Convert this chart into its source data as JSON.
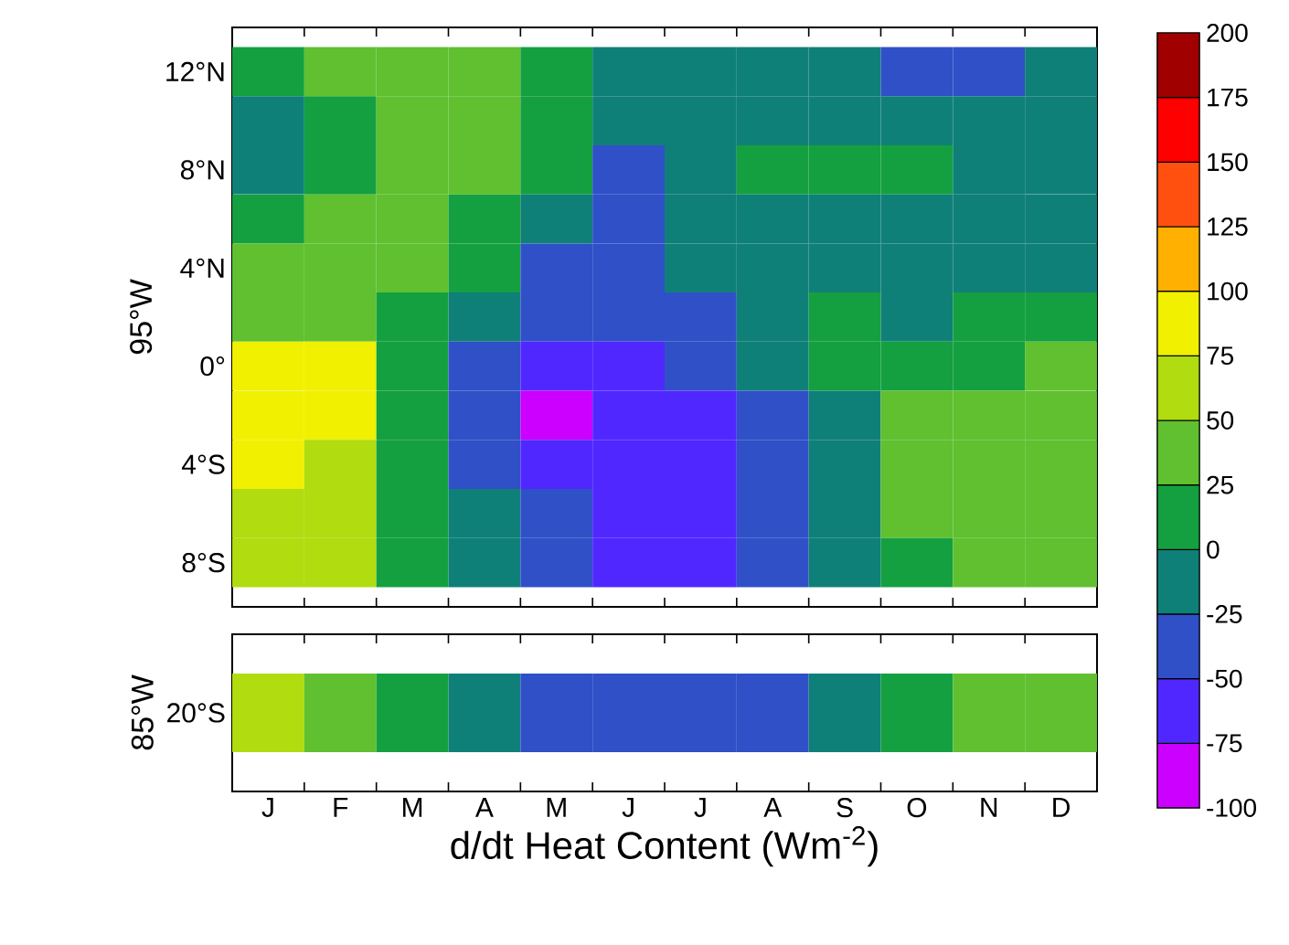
{
  "chart_data": [
    {
      "type": "heatmap",
      "ylabel": "95°W",
      "categories": [
        null,
        null,
        null,
        null,
        null,
        null,
        null,
        null,
        null,
        null,
        null,
        null
      ],
      "y_categories": [
        "12°N",
        null,
        "8°N",
        null,
        "4°N",
        null,
        "0°",
        null,
        "4°S",
        null,
        "8°S"
      ],
      "cells": [
        [
          12.5,
          37.5,
          37.5,
          37.5,
          12.5,
          -12.5,
          -12.5,
          -12.5,
          -12.5,
          -37.5,
          -37.5,
          -12.5
        ],
        [
          -12.5,
          12.5,
          37.5,
          37.5,
          12.5,
          -12.5,
          -12.5,
          -12.5,
          -12.5,
          -12.5,
          -12.5,
          -12.5
        ],
        [
          -12.5,
          12.5,
          37.5,
          37.5,
          12.5,
          -37.5,
          -12.5,
          12.5,
          12.5,
          12.5,
          -12.5,
          -12.5
        ],
        [
          12.5,
          37.5,
          37.5,
          12.5,
          -12.5,
          -37.5,
          -12.5,
          -12.5,
          -12.5,
          -12.5,
          -12.5,
          -12.5
        ],
        [
          37.5,
          37.5,
          37.5,
          12.5,
          -37.5,
          -37.5,
          -12.5,
          -12.5,
          -12.5,
          -12.5,
          -12.5,
          -12.5
        ],
        [
          37.5,
          37.5,
          12.5,
          -12.5,
          -37.5,
          -37.5,
          -37.5,
          -12.5,
          12.5,
          -12.5,
          12.5,
          12.5
        ],
        [
          87.5,
          87.5,
          12.5,
          -37.5,
          -62.5,
          -62.5,
          -37.5,
          -12.5,
          12.5,
          12.5,
          12.5,
          37.5
        ],
        [
          87.5,
          87.5,
          12.5,
          -37.5,
          -87.5,
          -62.5,
          -62.5,
          -37.5,
          -12.5,
          37.5,
          37.5,
          37.5
        ],
        [
          87.5,
          62.5,
          12.5,
          -37.5,
          -62.5,
          -62.5,
          -62.5,
          -37.5,
          -12.5,
          37.5,
          37.5,
          37.5
        ],
        [
          62.5,
          62.5,
          12.5,
          -12.5,
          -37.5,
          -62.5,
          -62.5,
          -37.5,
          -12.5,
          37.5,
          37.5,
          37.5
        ],
        [
          62.5,
          62.5,
          12.5,
          -12.5,
          -37.5,
          -62.5,
          -62.5,
          -37.5,
          -12.5,
          12.5,
          37.5,
          37.5
        ]
      ],
      "clim": [
        -100,
        200
      ],
      "cticks": [
        -100,
        -50,
        0,
        50,
        100,
        150,
        200
      ]
    },
    {
      "type": "heatmap",
      "ylabel": "85°W",
      "xlabel": "d/dt Heat Content (Wm$^{-2}$)",
      "categories": [
        "J",
        "F",
        "M",
        "A",
        "M",
        "J",
        "J",
        "A",
        "S",
        "O",
        "N",
        "D"
      ],
      "y_categories": [
        "20°S"
      ],
      "cells": [
        [
          62.5,
          37.5,
          12.5,
          -12.5,
          -37.5,
          -37.5,
          -37.5,
          -37.5,
          -12.5,
          12.5,
          37.5,
          37.5
        ]
      ],
      "clim": [
        -100,
        200
      ],
      "cticks": [
        -75,
        -25,
        25,
        75,
        125,
        175
      ]
    }
  ]
}
